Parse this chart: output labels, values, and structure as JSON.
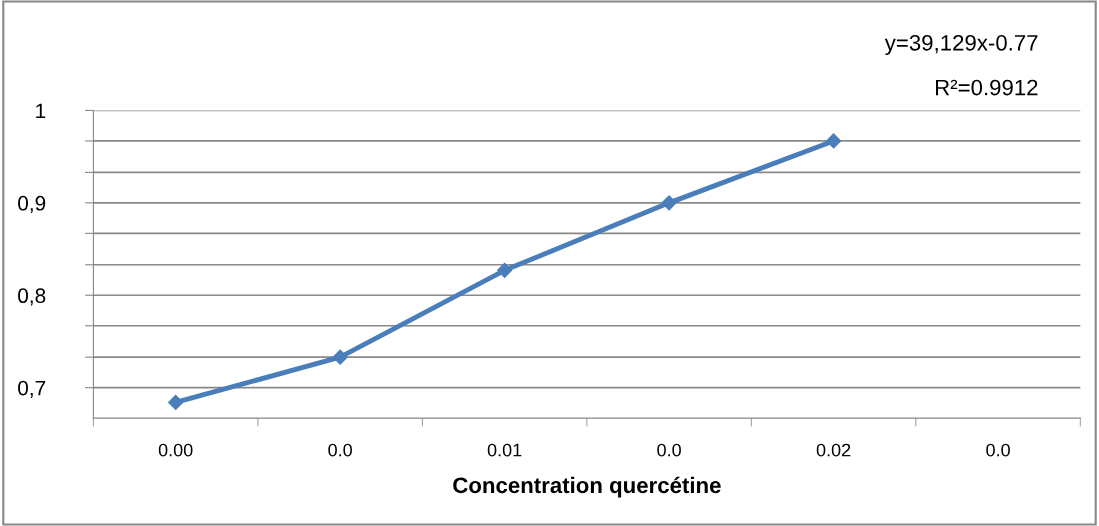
{
  "chart_data": {
    "type": "line",
    "xlabel": "Concentration quercétine",
    "categories": [
      "0.00",
      "0.0",
      "0.01",
      "0.0",
      "0.02",
      "0.0"
    ],
    "series": [
      {
        "color": "#4a7ebb",
        "values": [
          0.684,
          0.733,
          0.827,
          0.9,
          0.967,
          null
        ]
      }
    ],
    "marker": "diamond",
    "line_style": "solid",
    "ylim": [
      0.667,
      1.0
    ],
    "yticks": [
      {
        "value": 1.0,
        "label": "1"
      },
      {
        "value": 0.967,
        "label": null
      },
      {
        "value": 0.933,
        "label": null
      },
      {
        "value": 0.9,
        "label": "0,9"
      },
      {
        "value": 0.867,
        "label": null
      },
      {
        "value": 0.833,
        "label": null
      },
      {
        "value": 0.8,
        "label": "0,8"
      },
      {
        "value": 0.767,
        "label": null
      },
      {
        "value": 0.733,
        "label": null
      },
      {
        "value": 0.7,
        "label": "0,7"
      }
    ],
    "grid": "y",
    "annotations": [
      "y=39,129x-0.77",
      "R²=0.9912"
    ]
  }
}
